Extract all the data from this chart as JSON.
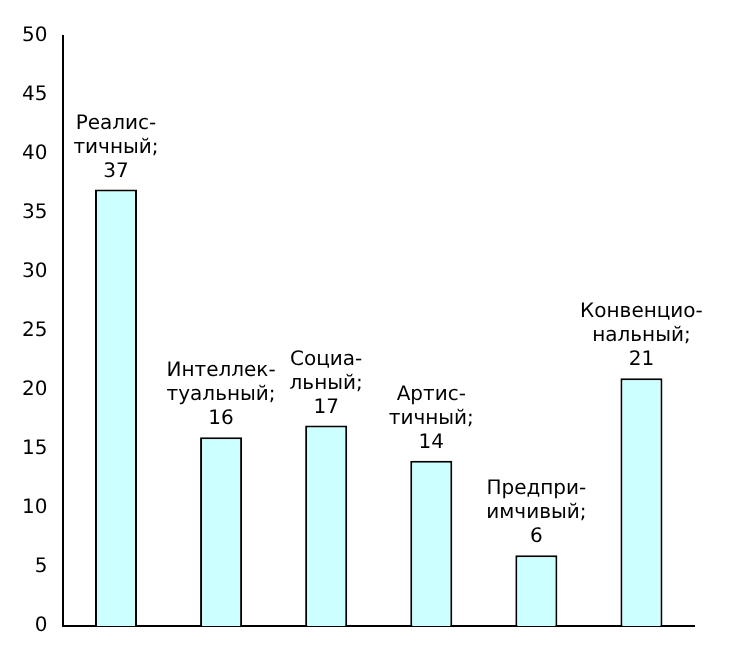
{
  "chart_data": {
    "type": "bar",
    "categories": [
      null,
      null,
      null,
      null,
      null,
      null
    ],
    "values": [
      37,
      16,
      17,
      14,
      6,
      21
    ],
    "value_labels": [
      "Реалис-тичный; 37",
      "Интеллек-туальный; 16",
      "Социа-льный; 17",
      "Артис-тичный; 14",
      "Предпри-имчивый; 6",
      "Конвенцио-нальный; 21"
    ],
    "color": "#ccffff",
    "ylim": [
      0,
      50
    ],
    "yticks": [
      0,
      5,
      10,
      15,
      20,
      25,
      30,
      35,
      40,
      45,
      50
    ],
    "grid": false,
    "legend": false,
    "tick_labels": "y"
  }
}
